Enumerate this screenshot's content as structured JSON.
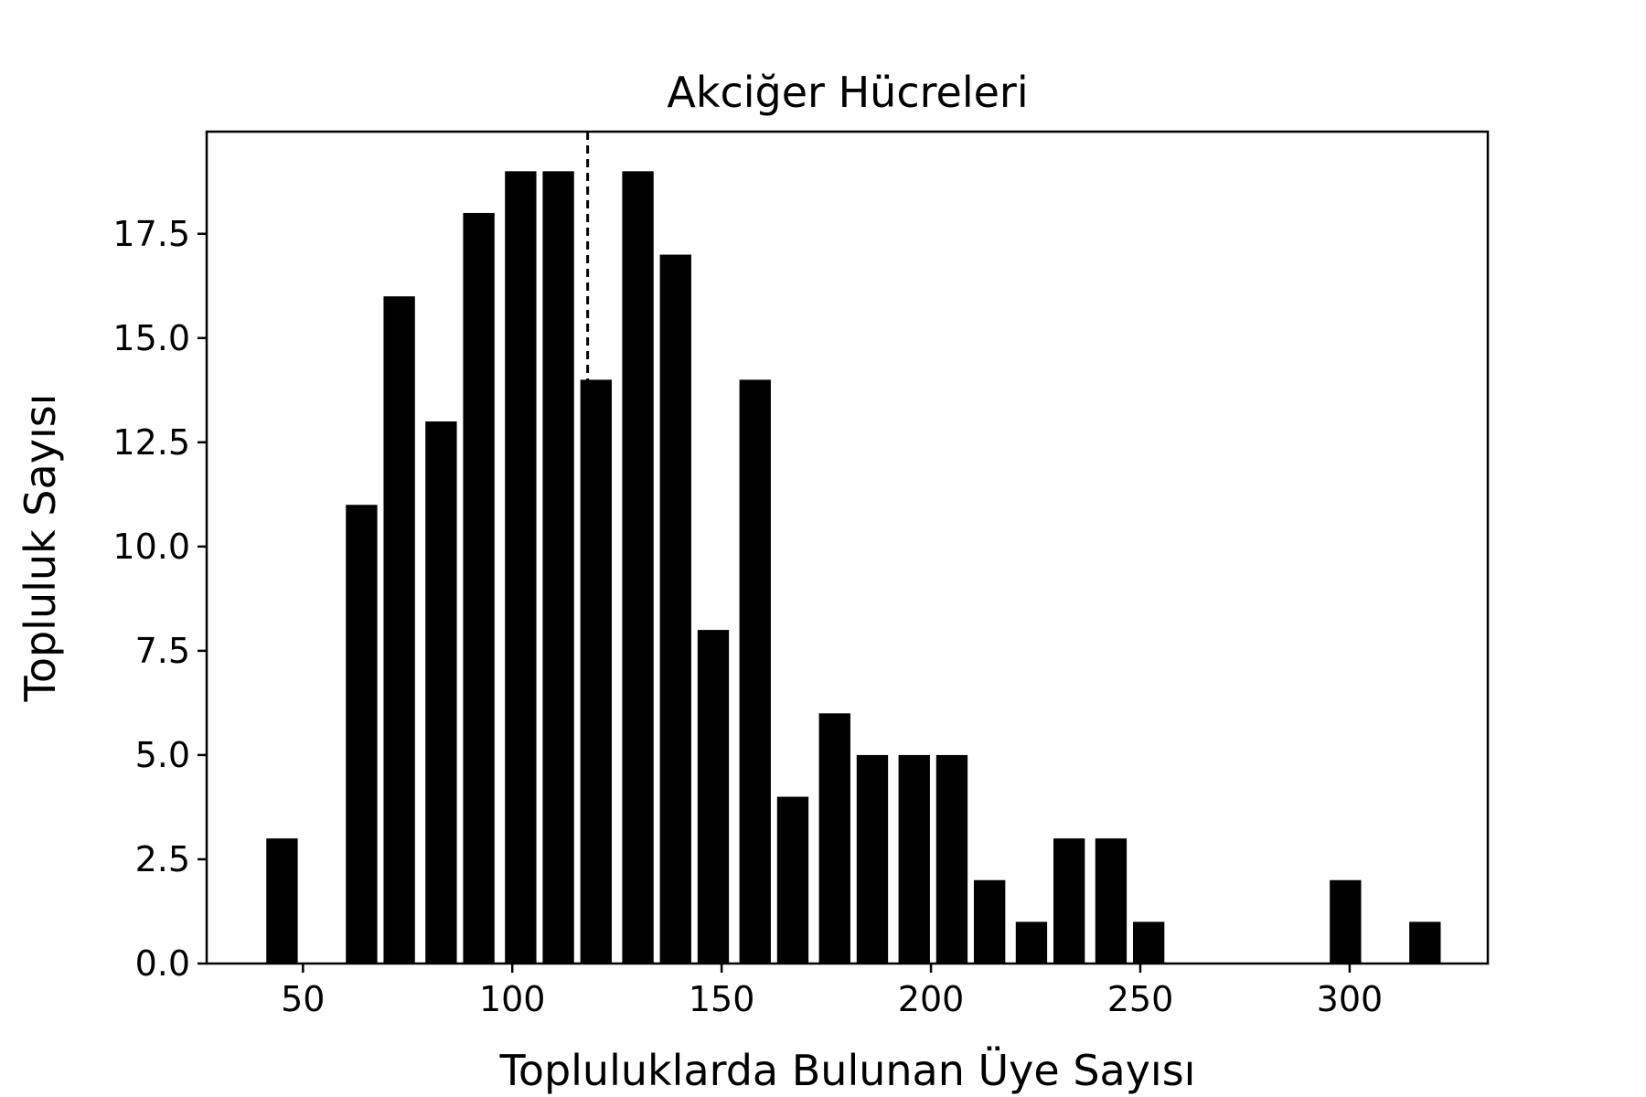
{
  "chart_data": {
    "type": "bar",
    "title": "Akciğer Hücreleri",
    "xlabel": "Topluluklarda Bulunan Üye Sayısı",
    "ylabel": "Topluluk Sayısı",
    "xlim": [
      27,
      333
    ],
    "ylim": [
      0,
      19.95
    ],
    "bar_width": 7.5,
    "bar_color": "#000000",
    "x": [
      45,
      64,
      73,
      83,
      92,
      102,
      111,
      120,
      130,
      139,
      148,
      158,
      167,
      177,
      186,
      196,
      205,
      214,
      224,
      233,
      243,
      252,
      299,
      318
    ],
    "values": [
      3,
      11,
      16,
      13,
      18,
      19,
      19,
      14,
      19,
      17,
      8,
      14,
      4,
      6,
      5,
      5,
      5,
      2,
      1,
      3,
      3,
      1,
      2,
      1
    ],
    "xticks": [
      50,
      100,
      150,
      200,
      250,
      300
    ],
    "yticks": [
      0.0,
      2.5,
      5.0,
      7.5,
      10.0,
      12.5,
      15.0,
      17.5
    ],
    "reference_line": {
      "x": 118,
      "style": "dashed",
      "color": "#000000"
    },
    "grid": false,
    "legend": "none"
  }
}
